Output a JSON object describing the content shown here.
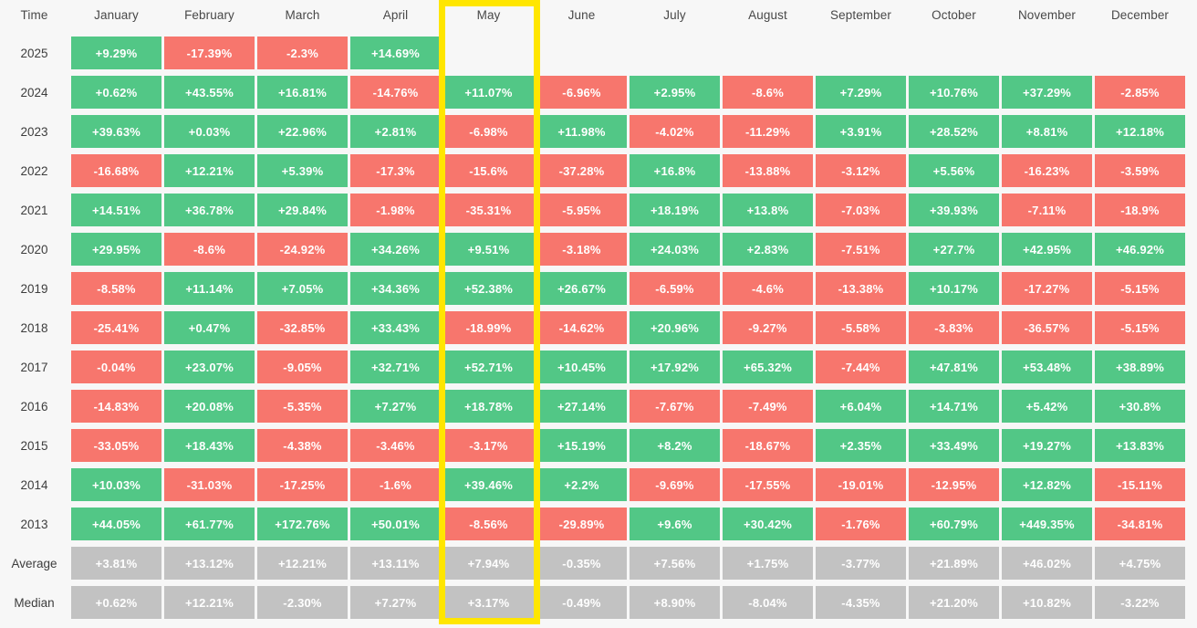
{
  "chart_data": {
    "type": "heatmap",
    "corner_label": "Time",
    "columns": [
      "January",
      "February",
      "March",
      "April",
      "May",
      "June",
      "July",
      "August",
      "September",
      "October",
      "November",
      "December"
    ],
    "highlighted_column": "May",
    "rows": [
      {
        "label": "2025",
        "type": "year",
        "values": [
          "+9.29%",
          "-17.39%",
          "-2.3%",
          "+14.69%",
          "",
          "",
          "",
          "",
          "",
          "",
          "",
          ""
        ]
      },
      {
        "label": "2024",
        "type": "year",
        "values": [
          "+0.62%",
          "+43.55%",
          "+16.81%",
          "-14.76%",
          "+11.07%",
          "-6.96%",
          "+2.95%",
          "-8.6%",
          "+7.29%",
          "+10.76%",
          "+37.29%",
          "-2.85%"
        ]
      },
      {
        "label": "2023",
        "type": "year",
        "values": [
          "+39.63%",
          "+0.03%",
          "+22.96%",
          "+2.81%",
          "-6.98%",
          "+11.98%",
          "-4.02%",
          "-11.29%",
          "+3.91%",
          "+28.52%",
          "+8.81%",
          "+12.18%"
        ]
      },
      {
        "label": "2022",
        "type": "year",
        "values": [
          "-16.68%",
          "+12.21%",
          "+5.39%",
          "-17.3%",
          "-15.6%",
          "-37.28%",
          "+16.8%",
          "-13.88%",
          "-3.12%",
          "+5.56%",
          "-16.23%",
          "-3.59%"
        ]
      },
      {
        "label": "2021",
        "type": "year",
        "values": [
          "+14.51%",
          "+36.78%",
          "+29.84%",
          "-1.98%",
          "-35.31%",
          "-5.95%",
          "+18.19%",
          "+13.8%",
          "-7.03%",
          "+39.93%",
          "-7.11%",
          "-18.9%"
        ]
      },
      {
        "label": "2020",
        "type": "year",
        "values": [
          "+29.95%",
          "-8.6%",
          "-24.92%",
          "+34.26%",
          "+9.51%",
          "-3.18%",
          "+24.03%",
          "+2.83%",
          "-7.51%",
          "+27.7%",
          "+42.95%",
          "+46.92%"
        ]
      },
      {
        "label": "2019",
        "type": "year",
        "values": [
          "-8.58%",
          "+11.14%",
          "+7.05%",
          "+34.36%",
          "+52.38%",
          "+26.67%",
          "-6.59%",
          "-4.6%",
          "-13.38%",
          "+10.17%",
          "-17.27%",
          "-5.15%"
        ]
      },
      {
        "label": "2018",
        "type": "year",
        "values": [
          "-25.41%",
          "+0.47%",
          "-32.85%",
          "+33.43%",
          "-18.99%",
          "-14.62%",
          "+20.96%",
          "-9.27%",
          "-5.58%",
          "-3.83%",
          "-36.57%",
          "-5.15%"
        ]
      },
      {
        "label": "2017",
        "type": "year",
        "values": [
          "-0.04%",
          "+23.07%",
          "-9.05%",
          "+32.71%",
          "+52.71%",
          "+10.45%",
          "+17.92%",
          "+65.32%",
          "-7.44%",
          "+47.81%",
          "+53.48%",
          "+38.89%"
        ]
      },
      {
        "label": "2016",
        "type": "year",
        "values": [
          "-14.83%",
          "+20.08%",
          "-5.35%",
          "+7.27%",
          "+18.78%",
          "+27.14%",
          "-7.67%",
          "-7.49%",
          "+6.04%",
          "+14.71%",
          "+5.42%",
          "+30.8%"
        ]
      },
      {
        "label": "2015",
        "type": "year",
        "values": [
          "-33.05%",
          "+18.43%",
          "-4.38%",
          "-3.46%",
          "-3.17%",
          "+15.19%",
          "+8.2%",
          "-18.67%",
          "+2.35%",
          "+33.49%",
          "+19.27%",
          "+13.83%"
        ]
      },
      {
        "label": "2014",
        "type": "year",
        "values": [
          "+10.03%",
          "-31.03%",
          "-17.25%",
          "-1.6%",
          "+39.46%",
          "+2.2%",
          "-9.69%",
          "-17.55%",
          "-19.01%",
          "-12.95%",
          "+12.82%",
          "-15.11%"
        ]
      },
      {
        "label": "2013",
        "type": "year",
        "values": [
          "+44.05%",
          "+61.77%",
          "+172.76%",
          "+50.01%",
          "-8.56%",
          "-29.89%",
          "+9.6%",
          "+30.42%",
          "-1.76%",
          "+60.79%",
          "+449.35%",
          "-34.81%"
        ]
      },
      {
        "label": "Average",
        "type": "summary",
        "values": [
          "+3.81%",
          "+13.12%",
          "+12.21%",
          "+13.11%",
          "+7.94%",
          "-0.35%",
          "+7.56%",
          "+1.75%",
          "-3.77%",
          "+21.89%",
          "+46.02%",
          "+4.75%"
        ]
      },
      {
        "label": "Median",
        "type": "summary",
        "values": [
          "+0.62%",
          "+12.21%",
          "-2.30%",
          "+7.27%",
          "+3.17%",
          "-0.49%",
          "+8.90%",
          "-8.04%",
          "-4.35%",
          "+21.20%",
          "+10.82%",
          "-3.22%"
        ]
      }
    ]
  },
  "colors": {
    "positive": "#52c786",
    "negative": "#f7766d",
    "summary": "#c2c2c2",
    "highlight": "#ffe600",
    "background": "#f7f7f7"
  }
}
